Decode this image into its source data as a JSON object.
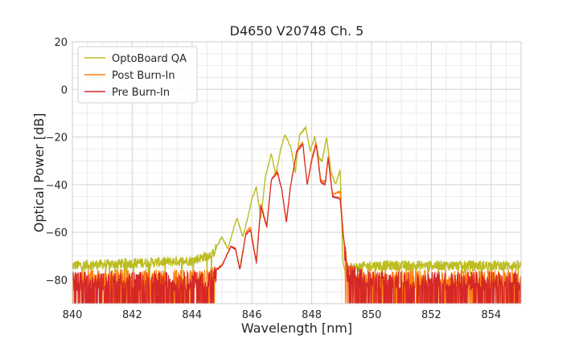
{
  "chart_data": {
    "type": "line",
    "title": "D4650 V20748 Ch. 5",
    "xlabel": "Wavelength [nm]",
    "ylabel": "Optical Power [dB]",
    "xlim": [
      840,
      855
    ],
    "ylim": [
      -90,
      20
    ],
    "xticks": [
      840,
      842,
      844,
      846,
      848,
      850,
      852,
      854
    ],
    "yticks": [
      20,
      0,
      -20,
      -40,
      -60,
      -80
    ],
    "xtick_labels": [
      "840",
      "842",
      "844",
      "846",
      "848",
      "850",
      "852",
      "854"
    ],
    "ytick_labels": [
      "20",
      "0",
      "−20",
      "−40",
      "−60",
      "−80"
    ],
    "grid": true,
    "legend_position": "top-left",
    "series": [
      {
        "name": "OptoBoard QA",
        "color": "#bcbd22",
        "noise_floor": -75,
        "points": [
          [
            840,
            -74
          ],
          [
            844,
            -72
          ],
          [
            844.7,
            -69
          ],
          [
            845.0,
            -62
          ],
          [
            845.2,
            -67
          ],
          [
            845.4,
            -58
          ],
          [
            845.5,
            -54
          ],
          [
            845.7,
            -62
          ],
          [
            845.9,
            -52
          ],
          [
            846.0,
            -46
          ],
          [
            846.15,
            -41
          ],
          [
            846.3,
            -54
          ],
          [
            846.45,
            -37
          ],
          [
            846.65,
            -27
          ],
          [
            846.8,
            -36
          ],
          [
            846.95,
            -26
          ],
          [
            847.1,
            -19
          ],
          [
            847.3,
            -24
          ],
          [
            847.45,
            -35
          ],
          [
            847.6,
            -19
          ],
          [
            847.8,
            -16
          ],
          [
            847.95,
            -26
          ],
          [
            848.1,
            -20
          ],
          [
            848.25,
            -29
          ],
          [
            848.35,
            -30
          ],
          [
            848.5,
            -20
          ],
          [
            848.65,
            -35
          ],
          [
            848.8,
            -40
          ],
          [
            848.95,
            -34
          ],
          [
            849.05,
            -73
          ],
          [
            849.15,
            -78
          ],
          [
            849.3,
            -75
          ],
          [
            850,
            -74
          ],
          [
            855,
            -74
          ]
        ]
      },
      {
        "name": "Post Burn-In",
        "color": "#ff7f0e",
        "noise_floor": -80,
        "points": [
          [
            840,
            -78
          ],
          [
            844.5,
            -78
          ],
          [
            845.0,
            -74
          ],
          [
            845.3,
            -66
          ],
          [
            845.45,
            -67
          ],
          [
            845.6,
            -75
          ],
          [
            845.8,
            -60
          ],
          [
            845.95,
            -58
          ],
          [
            846.15,
            -72
          ],
          [
            846.3,
            -48
          ],
          [
            846.5,
            -57
          ],
          [
            846.65,
            -38
          ],
          [
            846.85,
            -34
          ],
          [
            847.0,
            -42
          ],
          [
            847.15,
            -55
          ],
          [
            847.3,
            -40
          ],
          [
            847.5,
            -26
          ],
          [
            847.7,
            -22
          ],
          [
            847.85,
            -40
          ],
          [
            848.0,
            -29
          ],
          [
            848.15,
            -22
          ],
          [
            848.3,
            -38
          ],
          [
            848.45,
            -39
          ],
          [
            848.55,
            -28
          ],
          [
            848.7,
            -44
          ],
          [
            848.95,
            -43
          ],
          [
            849.05,
            -60
          ],
          [
            849.2,
            -75
          ],
          [
            850,
            -78
          ],
          [
            855,
            -78
          ]
        ]
      },
      {
        "name": "Pre Burn-In",
        "color": "#d62728",
        "noise_floor": -80,
        "points": [
          [
            840,
            -79
          ],
          [
            844.5,
            -79
          ],
          [
            845.0,
            -74
          ],
          [
            845.3,
            -66
          ],
          [
            845.45,
            -67
          ],
          [
            845.6,
            -76
          ],
          [
            845.8,
            -61
          ],
          [
            845.95,
            -59
          ],
          [
            846.15,
            -73
          ],
          [
            846.3,
            -49
          ],
          [
            846.5,
            -58
          ],
          [
            846.65,
            -38
          ],
          [
            846.85,
            -35
          ],
          [
            847.0,
            -42
          ],
          [
            847.15,
            -56
          ],
          [
            847.3,
            -40
          ],
          [
            847.5,
            -26
          ],
          [
            847.7,
            -23
          ],
          [
            847.85,
            -40
          ],
          [
            848.0,
            -30
          ],
          [
            848.15,
            -23
          ],
          [
            848.3,
            -39
          ],
          [
            848.45,
            -40
          ],
          [
            848.55,
            -29
          ],
          [
            848.7,
            -45
          ],
          [
            848.95,
            -46
          ],
          [
            849.05,
            -61
          ],
          [
            849.2,
            -76
          ],
          [
            850,
            -79
          ],
          [
            855,
            -79
          ]
        ]
      }
    ]
  }
}
